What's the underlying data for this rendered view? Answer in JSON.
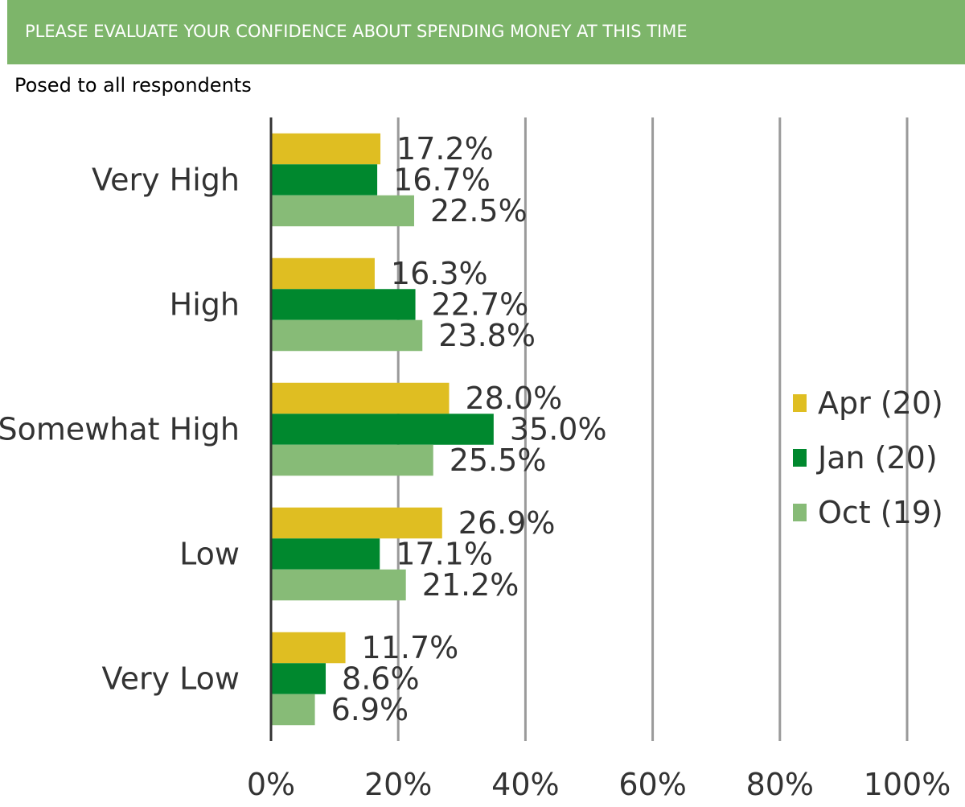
{
  "header": {
    "title": "PLEASE EVALUATE YOUR CONFIDENCE ABOUT SPENDING MONEY AT THIS TIME",
    "subtitle": "Posed to all respondents",
    "background_color": "#7db56a"
  },
  "chart_data": {
    "type": "bar",
    "orientation": "horizontal",
    "title": "PLEASE EVALUATE YOUR CONFIDENCE ABOUT SPENDING MONEY AT THIS TIME",
    "subtitle": "Posed to all respondents",
    "categories": [
      "Very High",
      "High",
      "Somewhat High",
      "Low",
      "Very Low"
    ],
    "series": [
      {
        "name": "Apr (20)",
        "color": "#dfbe22",
        "values": [
          17.2,
          16.3,
          28.0,
          26.9,
          11.7
        ],
        "labels": [
          "17.2%",
          "16.3%",
          "28.0%",
          "26.9%",
          "11.7%"
        ]
      },
      {
        "name": "Jan (20)",
        "color": "#00882e",
        "values": [
          16.7,
          22.7,
          35.0,
          17.1,
          8.6
        ],
        "labels": [
          "16.7%",
          "22.7%",
          "35.0%",
          "17.1%",
          "8.6%"
        ]
      },
      {
        "name": "Oct (19)",
        "color": "#87bb77",
        "values": [
          22.5,
          23.8,
          25.5,
          21.2,
          6.9
        ],
        "labels": [
          "22.5%",
          "23.8%",
          "25.5%",
          "21.2%",
          "6.9%"
        ]
      }
    ],
    "xlim": [
      0,
      100
    ],
    "xticks": [
      0,
      20,
      40,
      60,
      80,
      100
    ],
    "xtick_labels": [
      "0%",
      "20%",
      "40%",
      "60%",
      "80%",
      "100%"
    ],
    "grid": true,
    "legend_position": "right"
  }
}
